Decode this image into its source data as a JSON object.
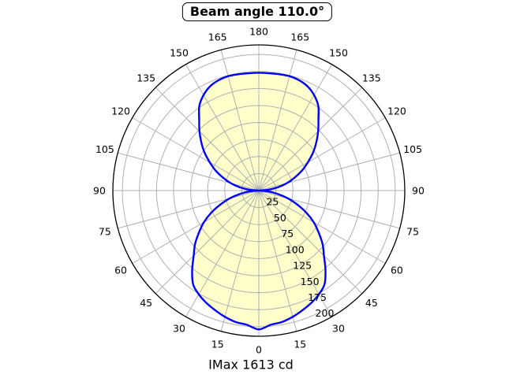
{
  "chart_data": {
    "type": "polar",
    "title": "Beam angle 110.0°",
    "footer": "IMax 1613 cd",
    "beam_angle_deg": 110.0,
    "imax_cd": 1613,
    "angle_ticks_deg": [
      0,
      15,
      30,
      45,
      60,
      75,
      90,
      105,
      120,
      135,
      150,
      165,
      180
    ],
    "angle_tick_labels": [
      "0",
      "15",
      "30",
      "45",
      "60",
      "75",
      "90",
      "105",
      "120",
      "135",
      "150",
      "165",
      "180"
    ],
    "angle_labels_mirrored": true,
    "radial_ticks": [
      25,
      50,
      75,
      100,
      125,
      150,
      175,
      200
    ],
    "radial_tick_labels": [
      "25",
      "50",
      "75",
      "100",
      "125",
      "150",
      "175",
      "200"
    ],
    "radial_axis_max": 214,
    "radial_label_angle_deg": 25,
    "grid": true,
    "colors": {
      "curve": "#0000ff",
      "fill": "#ffffcc",
      "grid": "#b0b0b0",
      "axis_edge": "#000000",
      "text": "#000000",
      "background": "#ffffff"
    },
    "distribution": {
      "angles_deg": [
        0,
        5,
        10,
        15,
        20,
        25,
        30,
        35,
        40,
        45,
        50,
        55,
        60,
        65,
        70,
        75,
        80,
        85,
        90
      ],
      "lower_lobe": [
        204,
        198,
        196,
        192,
        187,
        182,
        176,
        168,
        152,
        135,
        122,
        107,
        93,
        77,
        60,
        44,
        28,
        13,
        0
      ],
      "upper_lobe": [
        173,
        173,
        173.5,
        174,
        172.5,
        169,
        162,
        152,
        136,
        123,
        110,
        97,
        83,
        70,
        56,
        43,
        29,
        14,
        0
      ]
    }
  }
}
